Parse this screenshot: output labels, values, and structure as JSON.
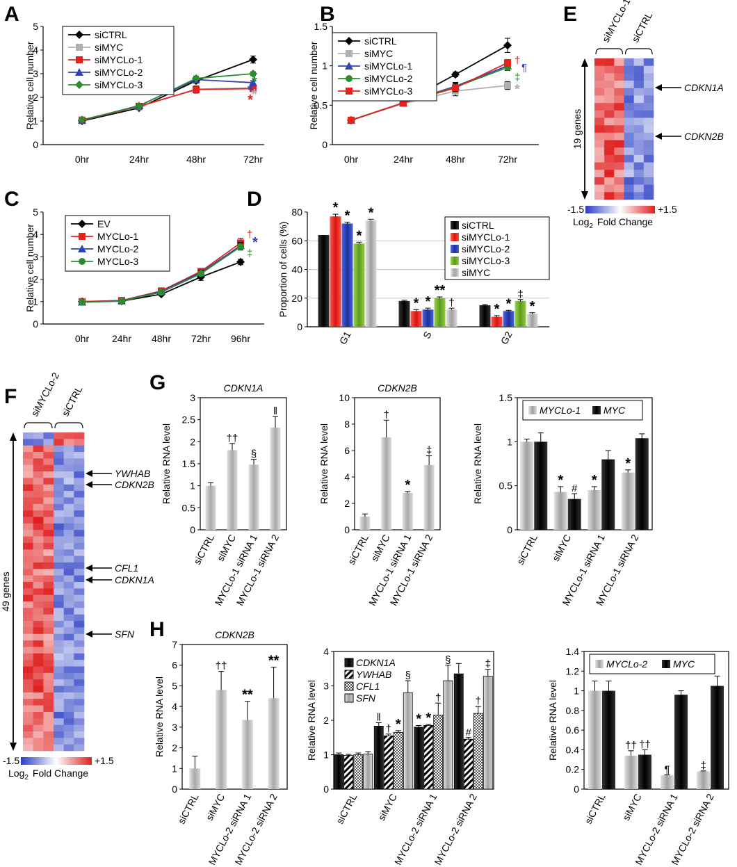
{
  "colors": {
    "black": "#000000",
    "gray": "#b0b0b0",
    "red": "#e8211c",
    "blue": "#2f43b6",
    "green": "#2e8b2e",
    "lightgreen": "#74b82c",
    "bar_gray": "#b4b4b4",
    "heat_low": "#2b3fc4",
    "heat_high": "#e01f1f"
  },
  "chart_data": [
    {
      "id": "A",
      "type": "line",
      "ylabel": "Relative cell number",
      "categories": [
        "0hr",
        "24hr",
        "48hr",
        "72hr"
      ],
      "ylim": [
        0,
        5
      ],
      "yticks": [
        "0",
        "1",
        "2",
        "3",
        "4",
        "5"
      ],
      "series": [
        {
          "name": "siCTRL",
          "color": "#000000",
          "marker": "diamond",
          "values": [
            1.0,
            1.55,
            2.7,
            3.6
          ],
          "err": [
            0.05,
            0.06,
            0.1,
            0.15
          ]
        },
        {
          "name": "siMYC",
          "color": "#b0b0b0",
          "marker": "square",
          "values": [
            1.05,
            1.6,
            2.35,
            2.4
          ],
          "err": [
            0.05,
            0.06,
            0.1,
            0.1
          ]
        },
        {
          "name": "siMYCLo-1",
          "color": "#e8211c",
          "marker": "square",
          "values": [
            1.02,
            1.62,
            2.33,
            2.37
          ],
          "err": [
            0.05,
            0.06,
            0.15,
            0.1
          ]
        },
        {
          "name": "siMYCLo-2",
          "color": "#2f43b6",
          "marker": "triangle",
          "values": [
            1.03,
            1.65,
            2.75,
            2.62
          ],
          "err": [
            0.05,
            0.06,
            0.1,
            0.08
          ]
        },
        {
          "name": "siMYCLo-3",
          "color": "#2e8b2e",
          "marker": "diamond",
          "values": [
            1.05,
            1.63,
            2.8,
            3.0
          ],
          "err": [
            0.05,
            0.06,
            0.1,
            0.08
          ]
        }
      ],
      "annotations": [
        {
          "text": "*",
          "color": "#2e8b2e"
        },
        {
          "text": "*",
          "color": "#2f43b6"
        },
        {
          "text": "*",
          "color": "#b0b0b0"
        },
        {
          "text": "*",
          "color": "#e8211c"
        }
      ]
    },
    {
      "id": "B",
      "type": "line",
      "ylabel": "Relative cell number",
      "categories": [
        "0hr",
        "24hr",
        "48hr",
        "72hr"
      ],
      "ylim": [
        0,
        1.5
      ],
      "yticks": [
        "0",
        "0.5",
        "1",
        "1.5"
      ],
      "series": [
        {
          "name": "siCTRL",
          "color": "#000000",
          "marker": "diamond",
          "values": [
            0.31,
            0.53,
            0.89,
            1.26
          ],
          "err": [
            0.02,
            0.02,
            0.03,
            0.09
          ]
        },
        {
          "name": "siMYC",
          "color": "#b0b0b0",
          "marker": "square",
          "values": [
            0.31,
            0.52,
            0.68,
            0.75
          ],
          "err": [
            0.02,
            0.02,
            0.06,
            0.05
          ]
        },
        {
          "name": "siMYCLo-1",
          "color": "#2f43b6",
          "marker": "triangle",
          "values": [
            0.31,
            0.53,
            0.74,
            1.0
          ],
          "err": [
            0.02,
            0.02,
            0.05,
            0.04
          ]
        },
        {
          "name": "siMYCLo-2",
          "color": "#2e8b2e",
          "marker": "circle",
          "values": [
            0.31,
            0.53,
            0.73,
            0.98
          ],
          "err": [
            0.02,
            0.02,
            0.05,
            0.04
          ]
        },
        {
          "name": "siMYCLo-3",
          "color": "#e8211c",
          "marker": "square",
          "values": [
            0.31,
            0.53,
            0.72,
            1.04
          ],
          "err": [
            0.02,
            0.02,
            0.05,
            0.04
          ]
        }
      ],
      "annotations": [
        {
          "text": "†",
          "color": "#e8211c"
        },
        {
          "text": "¶",
          "color": "#2f43b6"
        },
        {
          "text": "‡",
          "color": "#2e8b2e"
        },
        {
          "text": "*",
          "color": "#b0b0b0"
        }
      ]
    },
    {
      "id": "C",
      "type": "line",
      "ylabel": "Relative cell number",
      "categories": [
        "0hr",
        "24hr",
        "48hr",
        "72hr",
        "96hr"
      ],
      "ylim": [
        0,
        5
      ],
      "yticks": [
        "0",
        "1",
        "2",
        "3",
        "4",
        "5"
      ],
      "series": [
        {
          "name": "EV",
          "color": "#000000",
          "marker": "diamond",
          "values": [
            1.0,
            1.02,
            1.33,
            2.1,
            2.77
          ],
          "err": [
            0.04,
            0.04,
            0.06,
            0.15,
            0.12
          ]
        },
        {
          "name": "MYCLo-1",
          "color": "#e8211c",
          "marker": "square",
          "values": [
            1.0,
            1.05,
            1.48,
            2.35,
            3.62
          ],
          "err": [
            0.04,
            0.04,
            0.06,
            0.1,
            0.2
          ]
        },
        {
          "name": "MYCLo-2",
          "color": "#2f43b6",
          "marker": "triangle",
          "values": [
            0.98,
            1.03,
            1.45,
            2.3,
            3.5
          ],
          "err": [
            0.04,
            0.04,
            0.06,
            0.1,
            0.15
          ]
        },
        {
          "name": "MYCLo-3",
          "color": "#2e8b2e",
          "marker": "circle",
          "values": [
            0.97,
            1.02,
            1.42,
            2.25,
            3.45
          ],
          "err": [
            0.04,
            0.04,
            0.06,
            0.1,
            0.15
          ]
        }
      ],
      "annotations": [
        {
          "text": "†",
          "color": "#e8211c"
        },
        {
          "text": "*",
          "color": "#2f43b6"
        },
        {
          "text": "‡",
          "color": "#2e8b2e"
        }
      ]
    },
    {
      "id": "D",
      "type": "bar",
      "ylabel": "Proportion of cells (%)",
      "categories": [
        "G1",
        "S",
        "G2"
      ],
      "ylim": [
        0,
        80
      ],
      "yticks": [
        "0",
        "20",
        "40",
        "60",
        "80"
      ],
      "series": [
        {
          "name": "siCTRL",
          "color": "#000000",
          "values": [
            64,
            18,
            15
          ],
          "err": [
            0,
            0.5,
            0.5
          ],
          "labels": [
            "",
            "",
            ""
          ]
        },
        {
          "name": "siMYCLo-1",
          "color": "#e8211c",
          "values": [
            77,
            11,
            7
          ],
          "err": [
            1.5,
            1,
            0.8
          ],
          "labels": [
            "*",
            "*",
            "*"
          ]
        },
        {
          "name": "siMYCLo-2",
          "color": "#2f43b6",
          "values": [
            72,
            12,
            11
          ],
          "err": [
            1,
            1,
            0.5
          ],
          "labels": [
            "*",
            "*",
            "*"
          ]
        },
        {
          "name": "siMYCLo-3",
          "color": "#74b82c",
          "values": [
            58,
            20,
            18
          ],
          "err": [
            1,
            0.8,
            1
          ],
          "labels": [
            "*",
            "**",
            "‡"
          ]
        },
        {
          "name": "siMYC",
          "color": "#b4b4b4",
          "values": [
            74,
            12,
            9
          ],
          "err": [
            1,
            1,
            0.8
          ],
          "labels": [
            "*",
            "†",
            "*"
          ]
        }
      ]
    },
    {
      "id": "G1",
      "type": "bar",
      "title": "CDKN1A",
      "ylabel": "Relative RNA level",
      "categories": [
        "siCTRL",
        "siMYC",
        "MYCLo-1 siRNA 1",
        "MYCLo-1 siRNA 2"
      ],
      "ylim": [
        0,
        3
      ],
      "yticks": [
        "0",
        "0.5",
        "1",
        "1.5",
        "2",
        "2.5",
        "3"
      ],
      "values": [
        1.0,
        1.81,
        1.48,
        2.32
      ],
      "err": [
        0.07,
        0.15,
        0.12,
        0.25
      ],
      "labels": [
        "",
        "††",
        "§",
        "ǁ"
      ]
    },
    {
      "id": "G2",
      "type": "bar",
      "title": "CDKN2B",
      "ylabel": "Relative RNA level",
      "categories": [
        "siCTRL",
        "siMYC",
        "MYCLo-1 siRNA 1",
        "MYCLo-1 siRNA 2"
      ],
      "ylim": [
        0,
        10
      ],
      "yticks": [
        "0",
        "2",
        "4",
        "6",
        "8",
        "10"
      ],
      "values": [
        1.0,
        7.0,
        2.8,
        4.9
      ],
      "err": [
        0.2,
        1.3,
        0.1,
        0.7
      ],
      "labels": [
        "",
        "†",
        "*",
        "‡"
      ]
    },
    {
      "id": "G3",
      "type": "bar",
      "ylabel": "Relative RNA level",
      "categories": [
        "siCTRL",
        "siMYC",
        "MYCLo-1 siRNA 1",
        "MYCLo-1 siRNA 2"
      ],
      "ylim": [
        0,
        1.5
      ],
      "yticks": [
        "0",
        "0.5",
        "1",
        "1.5"
      ],
      "series": [
        {
          "name": "MYCLo-1",
          "color": "#b4b4b4",
          "values": [
            1.0,
            0.43,
            0.45,
            0.65
          ],
          "err": [
            0.03,
            0.06,
            0.04,
            0.03
          ],
          "labels": [
            "",
            "*",
            "*",
            "*"
          ]
        },
        {
          "name": "MYC",
          "color": "#000000",
          "values": [
            1.0,
            0.35,
            0.8,
            1.04
          ],
          "err": [
            0.1,
            0.06,
            0.1,
            0.05
          ],
          "labels": [
            "",
            "#",
            "",
            ""
          ]
        }
      ]
    },
    {
      "id": "H1",
      "type": "bar",
      "title": "CDKN2B",
      "ylabel": "Relative RNA level",
      "categories": [
        "siCTRL",
        "siMYC",
        "MYCLo-2 siRNA 1",
        "MYCLo-2 siRNA 2"
      ],
      "ylim": [
        0,
        7
      ],
      "yticks": [
        "0",
        "1",
        "2",
        "3",
        "4",
        "5",
        "6",
        "7"
      ],
      "values": [
        1.0,
        4.8,
        3.35,
        4.4
      ],
      "err": [
        0.6,
        0.9,
        0.9,
        1.5
      ],
      "labels": [
        "",
        "††",
        "**",
        "**"
      ]
    },
    {
      "id": "H2",
      "type": "bar",
      "ylabel": "Relative RNA level",
      "categories": [
        "siCTRL",
        "siMYC",
        "MYCLo-2 siRNA 1",
        "MYCLo-2 siRNA 2"
      ],
      "ylim": [
        0,
        4
      ],
      "yticks": [
        "0",
        "1",
        "2",
        "3",
        "4"
      ],
      "series": [
        {
          "name": "CDKN1A",
          "color": "#000000",
          "pattern": "solid",
          "values": [
            1.0,
            1.83,
            1.8,
            3.35
          ],
          "err": [
            0.05,
            0.1,
            0.05,
            0.3
          ],
          "labels": [
            "",
            "ǁ",
            "*",
            ""
          ]
        },
        {
          "name": "YWHAB",
          "color": "#000000",
          "pattern": "stripes",
          "values": [
            0.98,
            1.55,
            1.85,
            1.45
          ],
          "err": [
            0.03,
            0.05,
            0.03,
            0.05
          ],
          "labels": [
            "",
            "†",
            "*",
            "#"
          ]
        },
        {
          "name": "CFL1",
          "color": "#707070",
          "pattern": "checks",
          "values": [
            1.0,
            1.65,
            2.15,
            2.2
          ],
          "err": [
            0.05,
            0.05,
            0.35,
            0.2
          ],
          "labels": [
            "",
            "*",
            "†",
            "†"
          ]
        },
        {
          "name": "SFN",
          "color": "#b4b4b4",
          "pattern": "solid",
          "values": [
            1.02,
            2.8,
            3.15,
            3.28
          ],
          "err": [
            0.07,
            0.35,
            0.45,
            0.2
          ],
          "labels": [
            "",
            "§",
            "§",
            "‡"
          ]
        }
      ]
    },
    {
      "id": "H3",
      "type": "bar",
      "ylabel": "Relative RNA level",
      "categories": [
        "siCTRL",
        "siMYC",
        "MYCLo-2 siRNA 1",
        "MYCLo-2 siRNA 2"
      ],
      "ylim": [
        0,
        1.4
      ],
      "yticks": [
        "0",
        "0.2",
        "0.4",
        "0.6",
        "0.8",
        "1",
        "1.2",
        "1.4"
      ],
      "series": [
        {
          "name": "MYCLo-2",
          "color": "#b4b4b4",
          "values": [
            1.0,
            0.34,
            0.14,
            0.18
          ],
          "err": [
            0.1,
            0.05,
            0.005,
            0.005
          ],
          "labels": [
            "",
            "††",
            "¶",
            "‡"
          ]
        },
        {
          "name": "MYC",
          "color": "#000000",
          "values": [
            1.0,
            0.35,
            0.96,
            1.05
          ],
          "err": [
            0.1,
            0.05,
            0.04,
            0.1
          ],
          "labels": [
            "",
            "††",
            "",
            ""
          ]
        }
      ]
    },
    {
      "id": "E",
      "type": "heatmap",
      "column_groups": [
        "siMYCLo-1",
        "siCTRL"
      ],
      "row_count_label": "19 genes",
      "gene_labels": [
        "CDKN1A",
        "CDKN2B"
      ],
      "scale_min": "-1.5",
      "scale_max": "+1.5",
      "scale_label_prefix": "Log",
      "scale_label_sub": "2",
      "scale_label_suffix": "Fold Change"
    },
    {
      "id": "F",
      "type": "heatmap",
      "column_groups": [
        "siMYCLo-2",
        "siCTRL"
      ],
      "row_count_label": "49 genes",
      "gene_labels": [
        "YWHAB",
        "CDKN2B",
        "CFL1",
        "CDKN1A",
        "SFN"
      ],
      "scale_min": "-1.5",
      "scale_max": "+1.5",
      "scale_label_prefix": "Log",
      "scale_label_sub": "2",
      "scale_label_suffix": "Fold Change"
    }
  ],
  "panel_letters": {
    "A": "A",
    "B": "B",
    "C": "C",
    "D": "D",
    "E": "E",
    "F": "F",
    "G": "G",
    "H": "H"
  }
}
